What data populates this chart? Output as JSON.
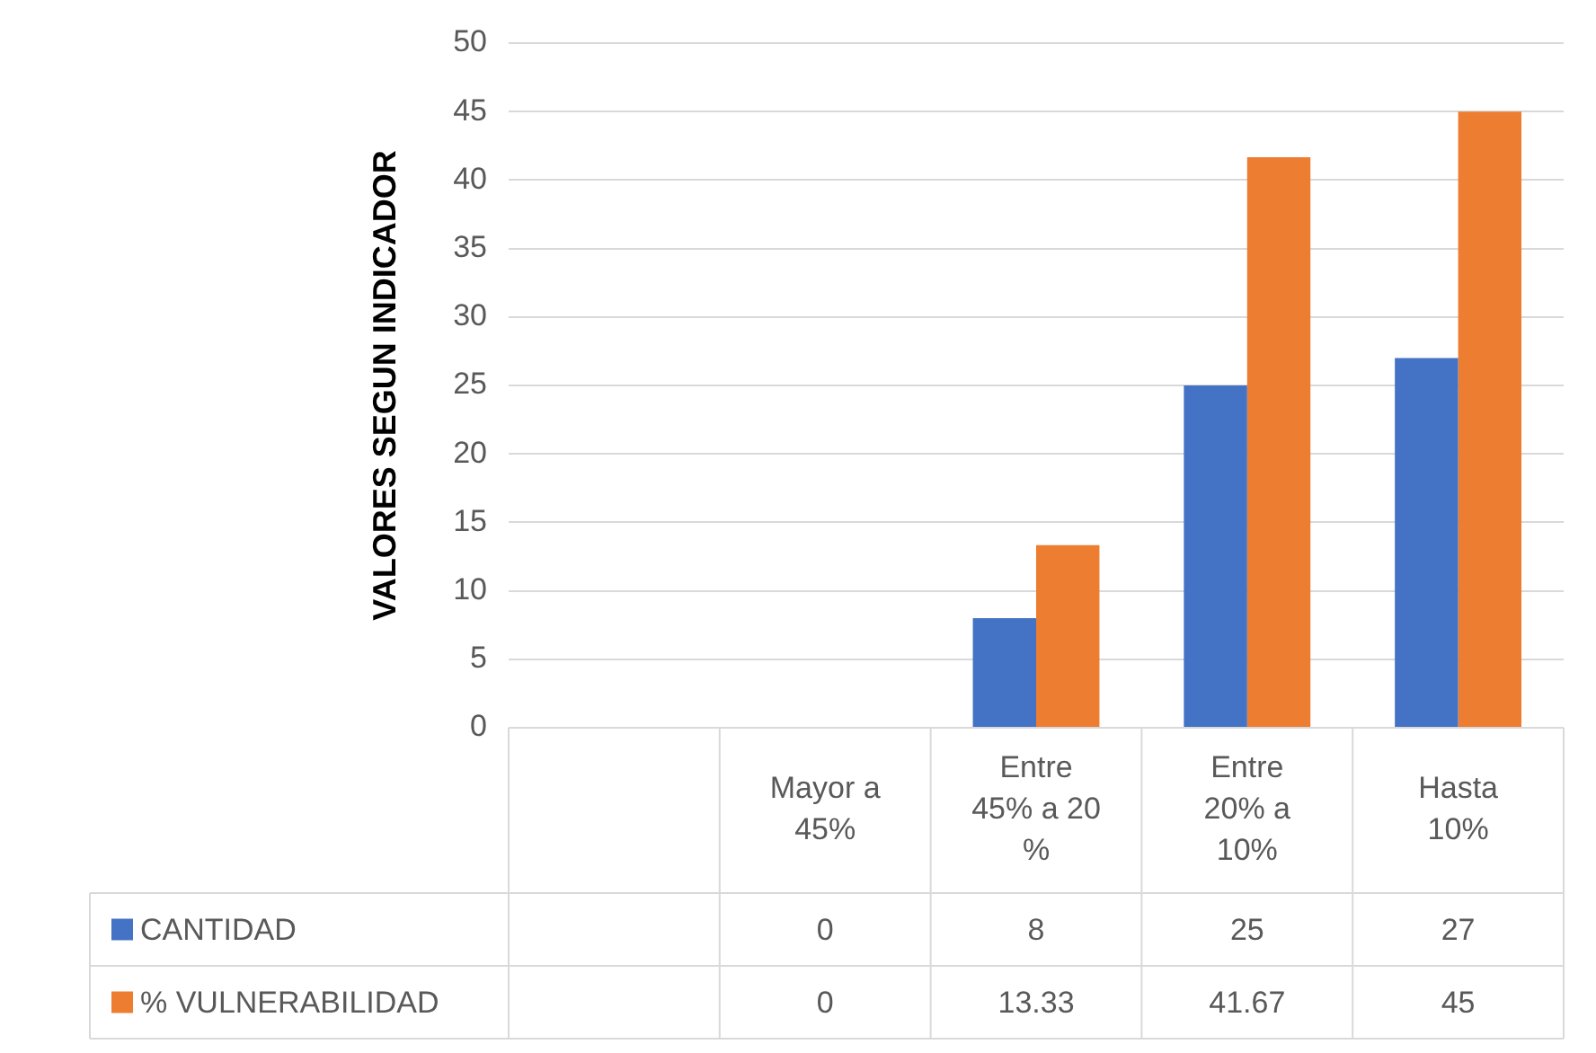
{
  "chart_data": {
    "type": "bar",
    "ylabel": "VALORES SEGUN INDICADOR",
    "categories": [
      null,
      "Mayor a 45%",
      "Entre 45% a 20 %",
      "Entre 20% a 10%",
      "Hasta 10%"
    ],
    "series": [
      {
        "name": "CANTIDAD",
        "color": "#4472c4",
        "values": [
          null,
          0,
          8,
          25,
          27
        ]
      },
      {
        "name": "% VULNERABILIDAD",
        "color": "#ed7d31",
        "values": [
          null,
          0,
          13.33,
          41.67,
          45
        ]
      }
    ],
    "ylim": [
      0,
      50
    ],
    "yticks": [
      0,
      5,
      10,
      15,
      20,
      25,
      30,
      35,
      40,
      45,
      50
    ],
    "grid": "y",
    "legend": "bottom",
    "data_labels": true
  }
}
